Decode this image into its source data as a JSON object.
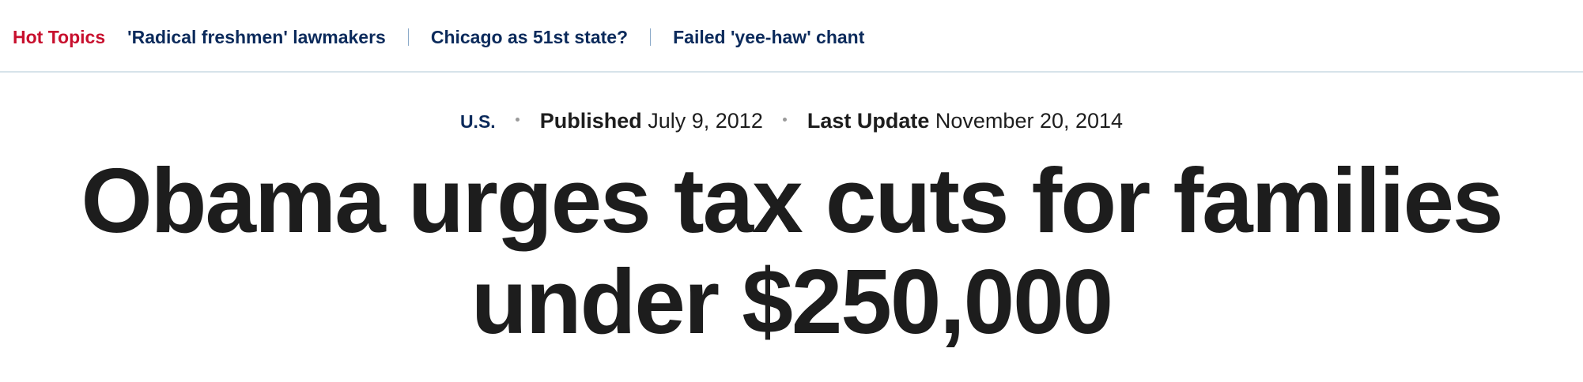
{
  "hot_topics": {
    "label": "Hot Topics",
    "links": [
      {
        "text": "'Radical freshmen' lawmakers"
      },
      {
        "text": "Chicago as 51st state?"
      },
      {
        "text": "Failed 'yee-haw' chant"
      }
    ]
  },
  "article": {
    "section": "U.S.",
    "published_label": "Published",
    "published_date": "July 9, 2012",
    "updated_label": "Last Update",
    "updated_date": "November 20, 2014",
    "headline_line1": "Obama urges tax cuts for families",
    "headline_line2": "under $250,000"
  },
  "colors": {
    "hot_label": "#c8102e",
    "link": "#0b2a5b",
    "text": "#1d1d1d",
    "divider": "#d7e3ea"
  }
}
